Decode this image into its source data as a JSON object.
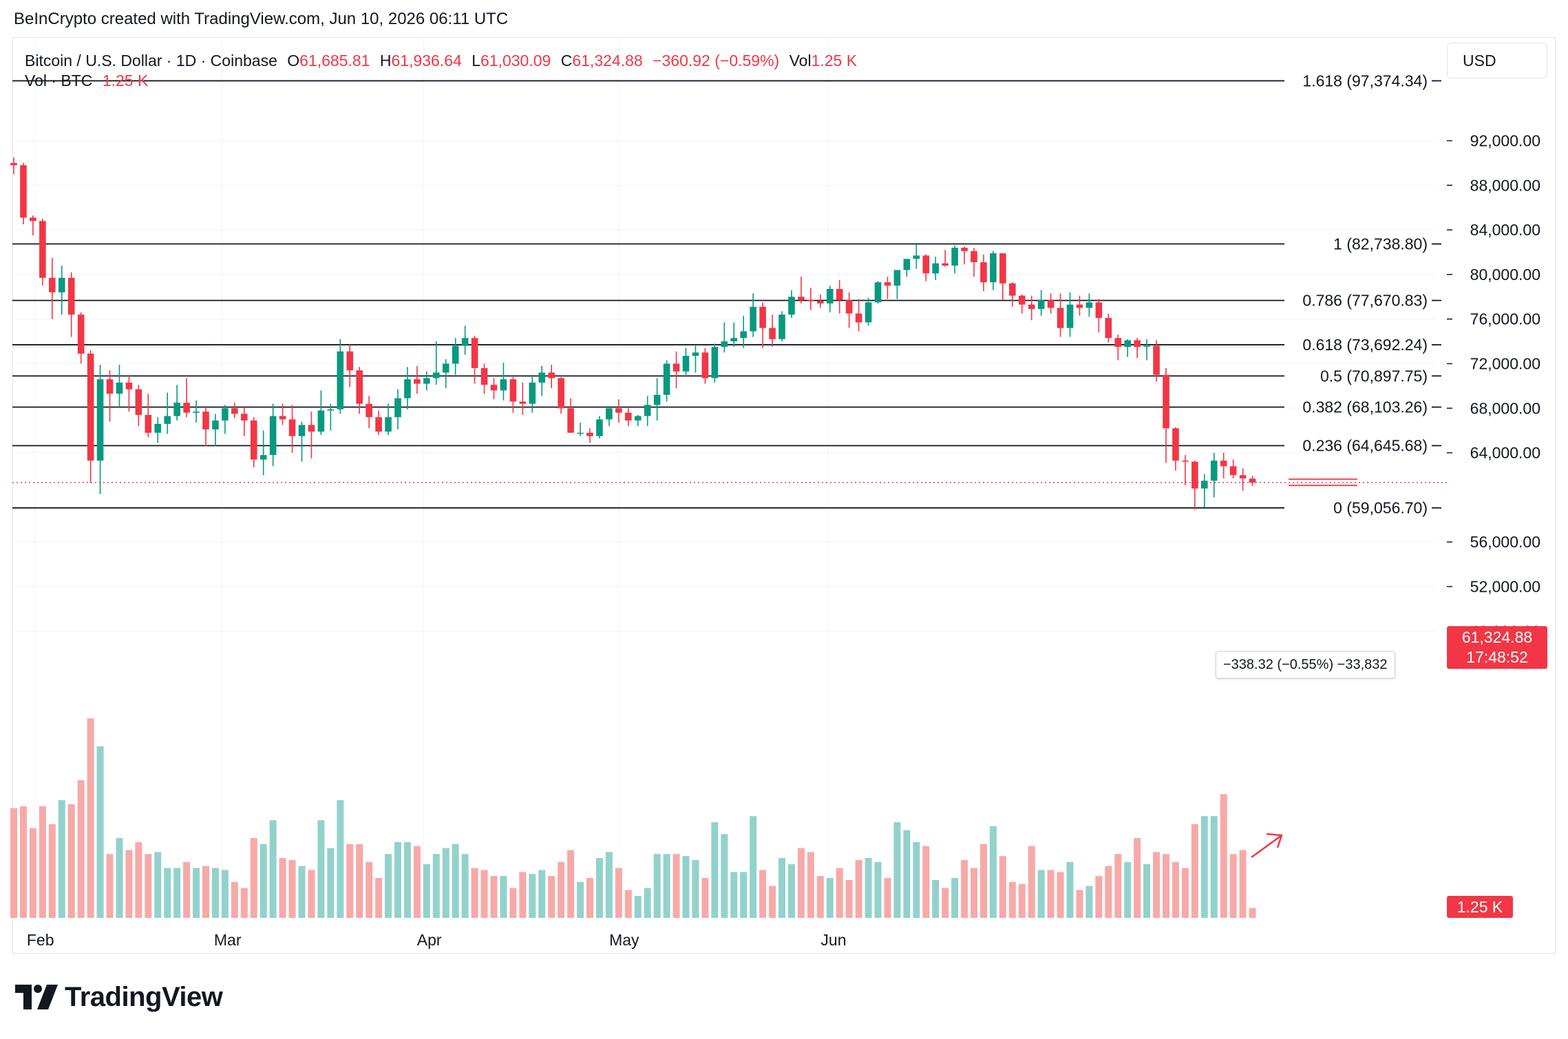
{
  "header": {
    "credit": "BeInCrypto created with TradingView.com, Jun 10, 2026 06:11 UTC"
  },
  "legend": {
    "symbol": "Bitcoin / U.S. Dollar · 1D · Coinbase",
    "open_label": "O",
    "open": "61,685.81",
    "high_label": "H",
    "high": "61,936.64",
    "low_label": "L",
    "low": "61,030.09",
    "close_label": "C",
    "close": "61,324.88",
    "change": "−360.92 (−0.59%)",
    "vol_label": "Vol",
    "vol": "1.25 K",
    "vol_series_label": "Vol · BTC",
    "vol_series_value": "1.25 K"
  },
  "currency_button": "USD",
  "price_badge": {
    "price": "61,324.88",
    "countdown": "17:48:52"
  },
  "volume_badge": "1.25 K",
  "measure_tooltip": "−338.32 (−0.55%) −33,832",
  "footer": {
    "brand": "TradingView"
  },
  "colors": {
    "up": "#089981",
    "down": "#f23645",
    "up_vol": "#92d2cc",
    "down_vol": "#f7a9a7",
    "grid": "#f0f3fa",
    "fib_line": "#131722"
  },
  "chart_data": {
    "type": "candlestick",
    "instrument": "Bitcoin / U.S. Dollar",
    "interval": "1D",
    "exchange": "Coinbase",
    "ylim": [
      52000,
      97400
    ],
    "y_ticks": [
      "92,000.00",
      "88,000.00",
      "84,000.00",
      "80,000.00",
      "76,000.00",
      "72,000.00",
      "68,000.00",
      "64,000.00",
      "56,000.00",
      "52,000.00",
      "48,000.00"
    ],
    "x_ticks": [
      "Feb",
      "Mar",
      "Apr",
      "May",
      "Jun"
    ],
    "fib_levels": [
      {
        "label": "1.618 (97,374.34)",
        "value": 97374.34
      },
      {
        "label": "1 (82,738.80)",
        "value": 82738.8
      },
      {
        "label": "0.786 (77,670.83)",
        "value": 77670.83
      },
      {
        "label": "0.618 (73,692.24)",
        "value": 73692.24
      },
      {
        "label": "0.5 (70,897.75)",
        "value": 70897.75
      },
      {
        "label": "0.382 (68,103.26)",
        "value": 68103.26
      },
      {
        "label": "0.236 (64,645.68)",
        "value": 64645.68
      },
      {
        "label": "0 (59,056.70)",
        "value": 59056.7
      }
    ],
    "last_price": 61324.88,
    "candles": [
      [
        90000,
        90500,
        89000,
        89800,
        55
      ],
      [
        89800,
        90000,
        84500,
        85100,
        56
      ],
      [
        85100,
        85300,
        83500,
        84800,
        45
      ],
      [
        84800,
        85000,
        79000,
        79700,
        56
      ],
      [
        79700,
        81500,
        76000,
        78400,
        47
      ],
      [
        78400,
        80800,
        76400,
        79700,
        59
      ],
      [
        79700,
        80200,
        74400,
        76400,
        57
      ],
      [
        76400,
        76600,
        72000,
        72900,
        69
      ],
      [
        72900,
        73200,
        61300,
        63300,
        100
      ],
      [
        63300,
        71900,
        60300,
        70600,
        86
      ],
      [
        70600,
        71400,
        66800,
        69300,
        32
      ],
      [
        69300,
        71900,
        68100,
        70300,
        40
      ],
      [
        70300,
        71000,
        67700,
        69700,
        34
      ],
      [
        69700,
        70100,
        66400,
        67400,
        38
      ],
      [
        67400,
        69300,
        65400,
        65800,
        32
      ],
      [
        65800,
        67200,
        64900,
        66600,
        33
      ],
      [
        66600,
        69400,
        65700,
        67300,
        25
      ],
      [
        67300,
        70100,
        66900,
        68500,
        25
      ],
      [
        68500,
        70700,
        67200,
        67600,
        28
      ],
      [
        67600,
        68700,
        66700,
        67700,
        25
      ],
      [
        67700,
        68200,
        64600,
        66100,
        26
      ],
      [
        66100,
        67500,
        64600,
        66900,
        25
      ],
      [
        66900,
        68300,
        65700,
        68000,
        24
      ],
      [
        68000,
        68500,
        67100,
        67500,
        18
      ],
      [
        67500,
        68100,
        65500,
        66900,
        15
      ],
      [
        66900,
        67200,
        62700,
        63400,
        40
      ],
      [
        63400,
        66000,
        62000,
        63800,
        37
      ],
      [
        63800,
        68400,
        62800,
        67300,
        49
      ],
      [
        67300,
        68400,
        66500,
        67000,
        30
      ],
      [
        67000,
        68300,
        64000,
        65500,
        29
      ],
      [
        65500,
        66800,
        63200,
        66500,
        26
      ],
      [
        66500,
        67700,
        63500,
        65900,
        24
      ],
      [
        65900,
        69600,
        65600,
        67800,
        49
      ],
      [
        67800,
        68400,
        66000,
        67900,
        35
      ],
      [
        67900,
        74200,
        67500,
        73100,
        59
      ],
      [
        73100,
        73700,
        69900,
        71400,
        37
      ],
      [
        71400,
        71700,
        67500,
        68400,
        37
      ],
      [
        68400,
        69100,
        66200,
        67200,
        28
      ],
      [
        67200,
        67800,
        65600,
        65900,
        20
      ],
      [
        65900,
        68400,
        65600,
        67200,
        32
      ],
      [
        67200,
        69700,
        66100,
        68900,
        38
      ],
      [
        68900,
        71700,
        67900,
        70600,
        38
      ],
      [
        70600,
        71800,
        69300,
        70200,
        36
      ],
      [
        70200,
        71300,
        69600,
        70700,
        27
      ],
      [
        70700,
        74000,
        70100,
        71200,
        32
      ],
      [
        71200,
        72400,
        69800,
        72000,
        35
      ],
      [
        72000,
        74300,
        71000,
        73600,
        37
      ],
      [
        73600,
        75400,
        72800,
        74300,
        32
      ],
      [
        74300,
        74500,
        70200,
        71600,
        25
      ],
      [
        71600,
        72000,
        69300,
        70100,
        24
      ],
      [
        70100,
        70700,
        68800,
        69600,
        21
      ],
      [
        69600,
        72100,
        68700,
        70600,
        21
      ],
      [
        70600,
        70800,
        67600,
        68600,
        15
      ],
      [
        68600,
        70300,
        67400,
        68400,
        23
      ],
      [
        68400,
        71000,
        67600,
        70300,
        22
      ],
      [
        70300,
        71800,
        69100,
        71200,
        24
      ],
      [
        71200,
        71900,
        69800,
        70700,
        21
      ],
      [
        70700,
        70800,
        67500,
        68000,
        28
      ],
      [
        68000,
        68900,
        66200,
        65800,
        34
      ],
      [
        65800,
        66700,
        65500,
        65800,
        18
      ],
      [
        65800,
        66200,
        64900,
        65500,
        20
      ],
      [
        65500,
        67300,
        65300,
        67000,
        30
      ],
      [
        67000,
        67900,
        66400,
        68000,
        33
      ],
      [
        68000,
        68800,
        66700,
        67600,
        25
      ],
      [
        67600,
        68000,
        66400,
        66900,
        14
      ],
      [
        66900,
        67400,
        66400,
        67300,
        11
      ],
      [
        67300,
        69100,
        66400,
        68300,
        15
      ],
      [
        68300,
        70700,
        66900,
        69200,
        32
      ],
      [
        69200,
        72300,
        68600,
        72000,
        32
      ],
      [
        72000,
        73100,
        69800,
        71300,
        32
      ],
      [
        71300,
        73400,
        70800,
        72700,
        31
      ],
      [
        72700,
        73600,
        71200,
        73000,
        29
      ],
      [
        73000,
        73400,
        70200,
        70700,
        20
      ],
      [
        70700,
        73800,
        70300,
        73500,
        48
      ],
      [
        73500,
        75700,
        73000,
        74000,
        42
      ],
      [
        74000,
        75700,
        73500,
        74300,
        23
      ],
      [
        74300,
        76300,
        73400,
        74900,
        23
      ],
      [
        74900,
        78300,
        74400,
        77100,
        51
      ],
      [
        77100,
        77500,
        73400,
        75200,
        24
      ],
      [
        75200,
        76400,
        73500,
        74200,
        16
      ],
      [
        74200,
        76700,
        74000,
        76400,
        30
      ],
      [
        76400,
        78600,
        76100,
        78000,
        27
      ],
      [
        78000,
        79800,
        77400,
        77700,
        35
      ],
      [
        77700,
        78800,
        76800,
        77600,
        33
      ],
      [
        77600,
        78200,
        77000,
        77400,
        21
      ],
      [
        77400,
        79000,
        76600,
        78700,
        20
      ],
      [
        78700,
        79500,
        76500,
        77700,
        25
      ],
      [
        77700,
        78400,
        75200,
        76500,
        19
      ],
      [
        76500,
        77800,
        74900,
        75700,
        29
      ],
      [
        75700,
        77900,
        75400,
        77500,
        30
      ],
      [
        77500,
        79400,
        77400,
        79300,
        28
      ],
      [
        79300,
        79800,
        77800,
        79000,
        20
      ],
      [
        79000,
        80200,
        77800,
        80400,
        48
      ],
      [
        80400,
        81200,
        79800,
        81400,
        44
      ],
      [
        81400,
        82700,
        80500,
        81700,
        38
      ],
      [
        81700,
        81800,
        79400,
        80100,
        36
      ],
      [
        80100,
        81600,
        79500,
        81000,
        19
      ],
      [
        81000,
        82200,
        80700,
        80800,
        15
      ],
      [
        80800,
        82600,
        80100,
        82400,
        20
      ],
      [
        82400,
        82500,
        80900,
        82100,
        29
      ],
      [
        82100,
        82400,
        79800,
        81100,
        25
      ],
      [
        81100,
        81800,
        78500,
        79300,
        37
      ],
      [
        79300,
        82100,
        78600,
        81900,
        46
      ],
      [
        81900,
        81900,
        77700,
        79200,
        31
      ],
      [
        79200,
        79300,
        77100,
        78100,
        18
      ],
      [
        78100,
        78200,
        76500,
        77300,
        17
      ],
      [
        77300,
        78100,
        75900,
        76900,
        36
      ],
      [
        76900,
        78600,
        76300,
        77700,
        24
      ],
      [
        77700,
        78300,
        76500,
        77000,
        24
      ],
      [
        77000,
        78300,
        74400,
        75200,
        23
      ],
      [
        75200,
        78400,
        74400,
        77300,
        28
      ],
      [
        77300,
        78100,
        76300,
        77000,
        14
      ],
      [
        77000,
        78300,
        76200,
        77500,
        16
      ],
      [
        77500,
        77800,
        74800,
        76100,
        21
      ],
      [
        76100,
        76500,
        73900,
        74300,
        26
      ],
      [
        74300,
        74600,
        72300,
        73500,
        32
      ],
      [
        73500,
        74200,
        72600,
        74100,
        28
      ],
      [
        74100,
        74300,
        72500,
        73500,
        40
      ],
      [
        73500,
        74200,
        72300,
        73600,
        27
      ],
      [
        73600,
        74100,
        70400,
        71000,
        33
      ],
      [
        71000,
        71600,
        63100,
        66200,
        32
      ],
      [
        66200,
        66300,
        62400,
        63300,
        28
      ],
      [
        63300,
        63800,
        61100,
        63200,
        25
      ],
      [
        63200,
        63300,
        58900,
        60800,
        47
      ],
      [
        60800,
        62100,
        59100,
        61500,
        51
      ],
      [
        61500,
        64000,
        60000,
        63300,
        51
      ],
      [
        63300,
        64000,
        61700,
        62800,
        62
      ],
      [
        62800,
        63400,
        61700,
        62000,
        32
      ],
      [
        62000,
        62600,
        60600,
        61700,
        34
      ],
      [
        61685.81,
        61936.64,
        61030.09,
        61324.88,
        5
      ]
    ]
  }
}
